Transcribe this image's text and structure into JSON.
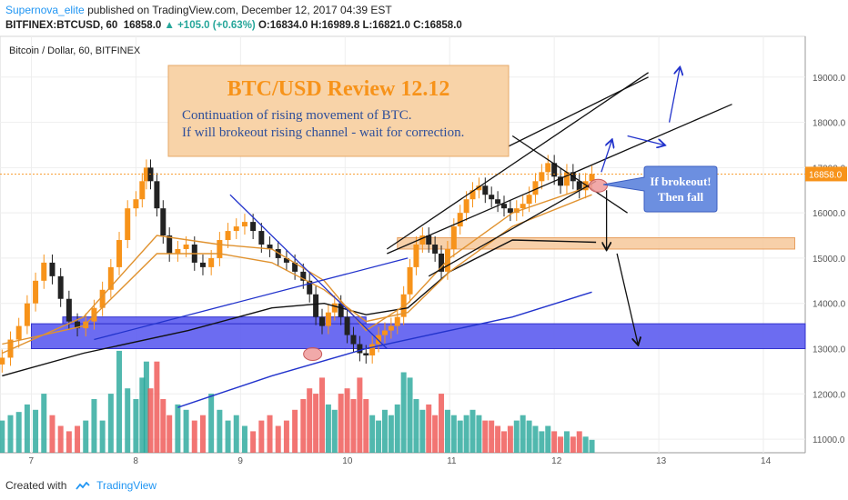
{
  "header": {
    "author": "Supernova_elite",
    "published_text": "published on TradingView.com, December 12, 2017 04:39 EST",
    "symbol": "BITFINEX:BTCUSD, 60",
    "last": "16858.0",
    "change": "+105.0 (+0.63%)",
    "open": "O:16834.0",
    "high": "H:16989.8",
    "low": "L:16821.0",
    "close": "C:16858.0"
  },
  "chart_title": "Bitcoin / Dollar, 60, BITFINEX",
  "footer": {
    "created_with": "Created with",
    "brand": "TradingView"
  },
  "annotations": {
    "box_title": "BTC/USD Review 12.12",
    "box_line1": "Continuation of rising movement of BTC.",
    "box_line2": "If will brokeout rising channel - wait for correction.",
    "callout_line1": "If brokeout!",
    "callout_line2": "Then fall"
  },
  "colors": {
    "up": "#26a69a",
    "down": "#ef5350",
    "candle_up": "#f7931a",
    "candle_down": "#222222",
    "ma_orange": "#e0922f",
    "ma_black": "#111111",
    "ma_blue": "#2233cc",
    "zone_blue": "#5c5cf0",
    "zone_orange": "#f6c89a",
    "price_label": "#f7931a"
  },
  "chart_data": {
    "type": "candlestick",
    "title": "Bitcoin / Dollar, 60, BITFINEX",
    "x_ticks": [
      "7",
      "8",
      "9",
      "10",
      "11",
      "12",
      "13",
      "14"
    ],
    "y_ticks": [
      11000,
      12000,
      13000,
      14000,
      15000,
      16000,
      17000,
      18000,
      19000
    ],
    "y_range": [
      10700,
      19900
    ],
    "x_range": [
      6.7,
      14.4
    ],
    "last_price": 16858.0,
    "close_path": [
      [
        6.72,
        12800
      ],
      [
        6.8,
        13200
      ],
      [
        6.88,
        13500
      ],
      [
        6.96,
        14000
      ],
      [
        7.04,
        14500
      ],
      [
        7.12,
        14900
      ],
      [
        7.2,
        14600
      ],
      [
        7.28,
        14100
      ],
      [
        7.36,
        13600
      ],
      [
        7.44,
        13450
      ],
      [
        7.52,
        13600
      ],
      [
        7.6,
        13900
      ],
      [
        7.68,
        14300
      ],
      [
        7.76,
        14800
      ],
      [
        7.84,
        15400
      ],
      [
        7.92,
        16100
      ],
      [
        8.0,
        16300
      ],
      [
        8.06,
        16700
      ],
      [
        8.1,
        17000
      ],
      [
        8.14,
        16700
      ],
      [
        8.2,
        16100
      ],
      [
        8.26,
        15500
      ],
      [
        8.32,
        15100
      ],
      [
        8.4,
        15200
      ],
      [
        8.48,
        15300
      ],
      [
        8.56,
        14900
      ],
      [
        8.64,
        14800
      ],
      [
        8.72,
        15000
      ],
      [
        8.8,
        15400
      ],
      [
        8.88,
        15600
      ],
      [
        8.96,
        15700
      ],
      [
        9.04,
        15800
      ],
      [
        9.12,
        15600
      ],
      [
        9.2,
        15300
      ],
      [
        9.28,
        15200
      ],
      [
        9.36,
        15000
      ],
      [
        9.44,
        14900
      ],
      [
        9.52,
        14700
      ],
      [
        9.6,
        14500
      ],
      [
        9.66,
        14200
      ],
      [
        9.72,
        13700
      ],
      [
        9.78,
        13500
      ],
      [
        9.84,
        13800
      ],
      [
        9.9,
        14000
      ],
      [
        9.96,
        13700
      ],
      [
        10.02,
        13300
      ],
      [
        10.08,
        13100
      ],
      [
        10.14,
        12900
      ],
      [
        10.2,
        12850
      ],
      [
        10.26,
        13100
      ],
      [
        10.32,
        13300
      ],
      [
        10.38,
        13400
      ],
      [
        10.44,
        13500
      ],
      [
        10.5,
        13700
      ],
      [
        10.56,
        14200
      ],
      [
        10.62,
        14800
      ],
      [
        10.68,
        15300
      ],
      [
        10.74,
        15500
      ],
      [
        10.8,
        15300
      ],
      [
        10.86,
        15100
      ],
      [
        10.92,
        14700
      ],
      [
        10.98,
        15200
      ],
      [
        11.04,
        15700
      ],
      [
        11.1,
        16000
      ],
      [
        11.16,
        16300
      ],
      [
        11.22,
        16500
      ],
      [
        11.28,
        16600
      ],
      [
        11.34,
        16400
      ],
      [
        11.4,
        16300
      ],
      [
        11.46,
        16200
      ],
      [
        11.52,
        16100
      ],
      [
        11.58,
        16000
      ],
      [
        11.64,
        16100
      ],
      [
        11.7,
        16200
      ],
      [
        11.76,
        16400
      ],
      [
        11.82,
        16700
      ],
      [
        11.88,
        16900
      ],
      [
        11.94,
        17100
      ],
      [
        12.0,
        16800
      ],
      [
        12.06,
        16600
      ],
      [
        12.12,
        16900
      ],
      [
        12.18,
        16700
      ],
      [
        12.24,
        16500
      ],
      [
        12.3,
        16700
      ],
      [
        12.36,
        16858
      ]
    ],
    "volume_path": [
      [
        6.72,
        0.3
      ],
      [
        6.8,
        0.35
      ],
      [
        6.88,
        0.38
      ],
      [
        6.96,
        0.45
      ],
      [
        7.04,
        0.4
      ],
      [
        7.12,
        0.55
      ],
      [
        7.2,
        0.35
      ],
      [
        7.28,
        0.25
      ],
      [
        7.36,
        0.2
      ],
      [
        7.44,
        0.25
      ],
      [
        7.52,
        0.3
      ],
      [
        7.6,
        0.5
      ],
      [
        7.68,
        0.3
      ],
      [
        7.76,
        0.55
      ],
      [
        7.84,
        0.95
      ],
      [
        7.92,
        0.6
      ],
      [
        8.0,
        0.5
      ],
      [
        8.06,
        0.7
      ],
      [
        8.1,
        0.85
      ],
      [
        8.14,
        0.6
      ],
      [
        8.2,
        0.85
      ],
      [
        8.26,
        0.5
      ],
      [
        8.32,
        0.35
      ],
      [
        8.4,
        0.45
      ],
      [
        8.48,
        0.4
      ],
      [
        8.56,
        0.3
      ],
      [
        8.64,
        0.35
      ],
      [
        8.72,
        0.55
      ],
      [
        8.8,
        0.4
      ],
      [
        8.88,
        0.3
      ],
      [
        8.96,
        0.35
      ],
      [
        9.04,
        0.25
      ],
      [
        9.12,
        0.2
      ],
      [
        9.2,
        0.3
      ],
      [
        9.28,
        0.35
      ],
      [
        9.36,
        0.25
      ],
      [
        9.44,
        0.3
      ],
      [
        9.52,
        0.4
      ],
      [
        9.6,
        0.5
      ],
      [
        9.66,
        0.6
      ],
      [
        9.72,
        0.55
      ],
      [
        9.78,
        0.7
      ],
      [
        9.84,
        0.45
      ],
      [
        9.9,
        0.4
      ],
      [
        9.96,
        0.55
      ],
      [
        10.02,
        0.6
      ],
      [
        10.08,
        0.5
      ],
      [
        10.14,
        0.7
      ],
      [
        10.2,
        0.5
      ],
      [
        10.26,
        0.35
      ],
      [
        10.32,
        0.3
      ],
      [
        10.38,
        0.4
      ],
      [
        10.44,
        0.35
      ],
      [
        10.5,
        0.45
      ],
      [
        10.56,
        0.75
      ],
      [
        10.62,
        0.7
      ],
      [
        10.68,
        0.5
      ],
      [
        10.74,
        0.4
      ],
      [
        10.8,
        0.45
      ],
      [
        10.86,
        0.35
      ],
      [
        10.92,
        0.55
      ],
      [
        10.98,
        0.4
      ],
      [
        11.04,
        0.35
      ],
      [
        11.1,
        0.3
      ],
      [
        11.16,
        0.35
      ],
      [
        11.22,
        0.4
      ],
      [
        11.28,
        0.35
      ],
      [
        11.34,
        0.3
      ],
      [
        11.4,
        0.3
      ],
      [
        11.46,
        0.25
      ],
      [
        11.52,
        0.2
      ],
      [
        11.58,
        0.25
      ],
      [
        11.64,
        0.3
      ],
      [
        11.7,
        0.35
      ],
      [
        11.76,
        0.3
      ],
      [
        11.82,
        0.25
      ],
      [
        11.88,
        0.2
      ],
      [
        11.94,
        0.25
      ],
      [
        12.0,
        0.2
      ],
      [
        12.06,
        0.15
      ],
      [
        12.12,
        0.2
      ],
      [
        12.18,
        0.15
      ],
      [
        12.24,
        0.2
      ],
      [
        12.3,
        0.15
      ],
      [
        12.36,
        0.12
      ]
    ],
    "moving_averages": [
      {
        "color_key": "ma_black",
        "points": [
          [
            6.72,
            12400
          ],
          [
            7.5,
            12900
          ],
          [
            8.5,
            13400
          ],
          [
            9.3,
            13900
          ],
          [
            9.8,
            14000
          ],
          [
            10.2,
            13750
          ],
          [
            10.6,
            13900
          ],
          [
            11.0,
            14700
          ],
          [
            11.6,
            15400
          ],
          [
            12.4,
            15350
          ]
        ]
      },
      {
        "color_key": "ma_blue",
        "points": [
          [
            8.4,
            11700
          ],
          [
            9.3,
            12400
          ],
          [
            10.2,
            13000
          ],
          [
            11.0,
            13400
          ],
          [
            11.6,
            13700
          ],
          [
            12.36,
            14250
          ]
        ]
      },
      {
        "color_key": "ma_orange",
        "points": [
          [
            6.72,
            12900
          ],
          [
            7.5,
            13700
          ],
          [
            8.2,
            15500
          ],
          [
            8.8,
            15300
          ],
          [
            9.3,
            15200
          ],
          [
            9.8,
            14500
          ],
          [
            10.2,
            13400
          ],
          [
            10.6,
            14000
          ],
          [
            11.0,
            15000
          ],
          [
            11.6,
            16000
          ],
          [
            12.36,
            16600
          ]
        ]
      },
      {
        "color_key": "ma_orange",
        "points": [
          [
            6.72,
            13100
          ],
          [
            7.5,
            13500
          ],
          [
            8.2,
            15100
          ],
          [
            8.8,
            15100
          ],
          [
            9.3,
            14900
          ],
          [
            9.8,
            14300
          ],
          [
            10.2,
            13600
          ],
          [
            10.6,
            13800
          ],
          [
            11.0,
            14700
          ],
          [
            11.6,
            15700
          ],
          [
            12.36,
            16400
          ]
        ]
      }
    ],
    "zones": [
      {
        "color_key": "zone_blue",
        "x": [
          7.0,
          14.4
        ],
        "y": [
          13000,
          13550
        ]
      },
      {
        "color_key": "zone_blue",
        "x": [
          7.3,
          10.2
        ],
        "y": [
          13550,
          13700
        ]
      },
      {
        "color_key": "zone_orange",
        "x": [
          10.5,
          14.3
        ],
        "y": [
          15200,
          15450
        ]
      }
    ],
    "trend_lines": [
      {
        "color_key": "ma_black",
        "points": [
          [
            10.4,
            15200
          ],
          [
            12.9,
            19100
          ]
        ]
      },
      {
        "color_key": "ma_black",
        "points": [
          [
            10.4,
            15100
          ],
          [
            13.7,
            18400
          ]
        ]
      },
      {
        "color_key": "ma_black",
        "points": [
          [
            10.8,
            14600
          ],
          [
            12.4,
            16700
          ]
        ]
      },
      {
        "color_key": "ma_black",
        "points": [
          [
            11.6,
            17700
          ],
          [
            12.7,
            16000
          ]
        ]
      },
      {
        "color_key": "ma_black",
        "points": [
          [
            11.5,
            17400
          ],
          [
            12.9,
            19000
          ]
        ]
      },
      {
        "color_key": "ma_blue",
        "points": [
          [
            7.6,
            13200
          ],
          [
            10.6,
            15000
          ]
        ]
      },
      {
        "color_key": "ma_blue",
        "points": [
          [
            8.9,
            16400
          ],
          [
            10.4,
            13000
          ]
        ]
      }
    ],
    "arrows": [
      {
        "color_key": "ma_blue",
        "from": [
          12.45,
          16900
        ],
        "to": [
          12.55,
          17600
        ]
      },
      {
        "color_key": "ma_blue",
        "from": [
          12.7,
          17700
        ],
        "to": [
          13.05,
          17500
        ]
      },
      {
        "color_key": "ma_blue",
        "from": [
          13.1,
          18000
        ],
        "to": [
          13.2,
          19200
        ]
      },
      {
        "color_key": "ma_black",
        "from": [
          12.5,
          16500
        ],
        "to": [
          12.5,
          15200
        ]
      },
      {
        "color_key": "ma_black",
        "from": [
          12.6,
          15100
        ],
        "to": [
          12.8,
          13100
        ]
      }
    ],
    "circles": [
      {
        "center": [
          12.42,
          16600
        ],
        "label_key": "breakout_point"
      },
      {
        "center": [
          9.69,
          12880
        ],
        "label_key": "low_point"
      }
    ]
  }
}
